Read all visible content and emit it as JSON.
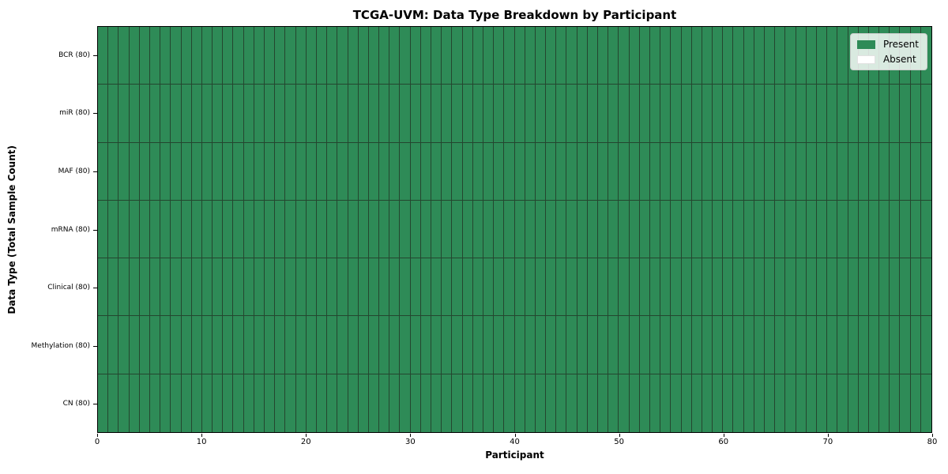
{
  "chart_data": {
    "type": "heatmap",
    "title": "TCGA-UVM: Data Type Breakdown by Participant",
    "xlabel": "Participant",
    "ylabel": "Data Type (Total Sample Count)",
    "xlim": [
      0,
      80
    ],
    "x_ticks": [
      0,
      10,
      20,
      30,
      40,
      50,
      60,
      70,
      80
    ],
    "n_participants": 80,
    "rows": [
      {
        "label": "BCR (80)",
        "present_count": 80,
        "absent_count": 0
      },
      {
        "label": "miR (80)",
        "present_count": 80,
        "absent_count": 0
      },
      {
        "label": "MAF (80)",
        "present_count": 80,
        "absent_count": 0
      },
      {
        "label": "mRNA (80)",
        "present_count": 80,
        "absent_count": 0
      },
      {
        "label": "Clinical (80)",
        "present_count": 80,
        "absent_count": 0
      },
      {
        "label": "Methylation (80)",
        "present_count": 80,
        "absent_count": 0
      },
      {
        "label": "CN (80)",
        "present_count": 80,
        "absent_count": 0
      }
    ],
    "legend": {
      "position": "upper right",
      "entries": [
        {
          "label": "Present",
          "color": "#2e8b57"
        },
        {
          "label": "Absent",
          "color": "#ffffff"
        }
      ]
    },
    "colors": {
      "present": "#2e8b57",
      "absent": "#ffffff",
      "cell_edge": "#24462f",
      "spine": "#000000"
    },
    "grid": false
  }
}
